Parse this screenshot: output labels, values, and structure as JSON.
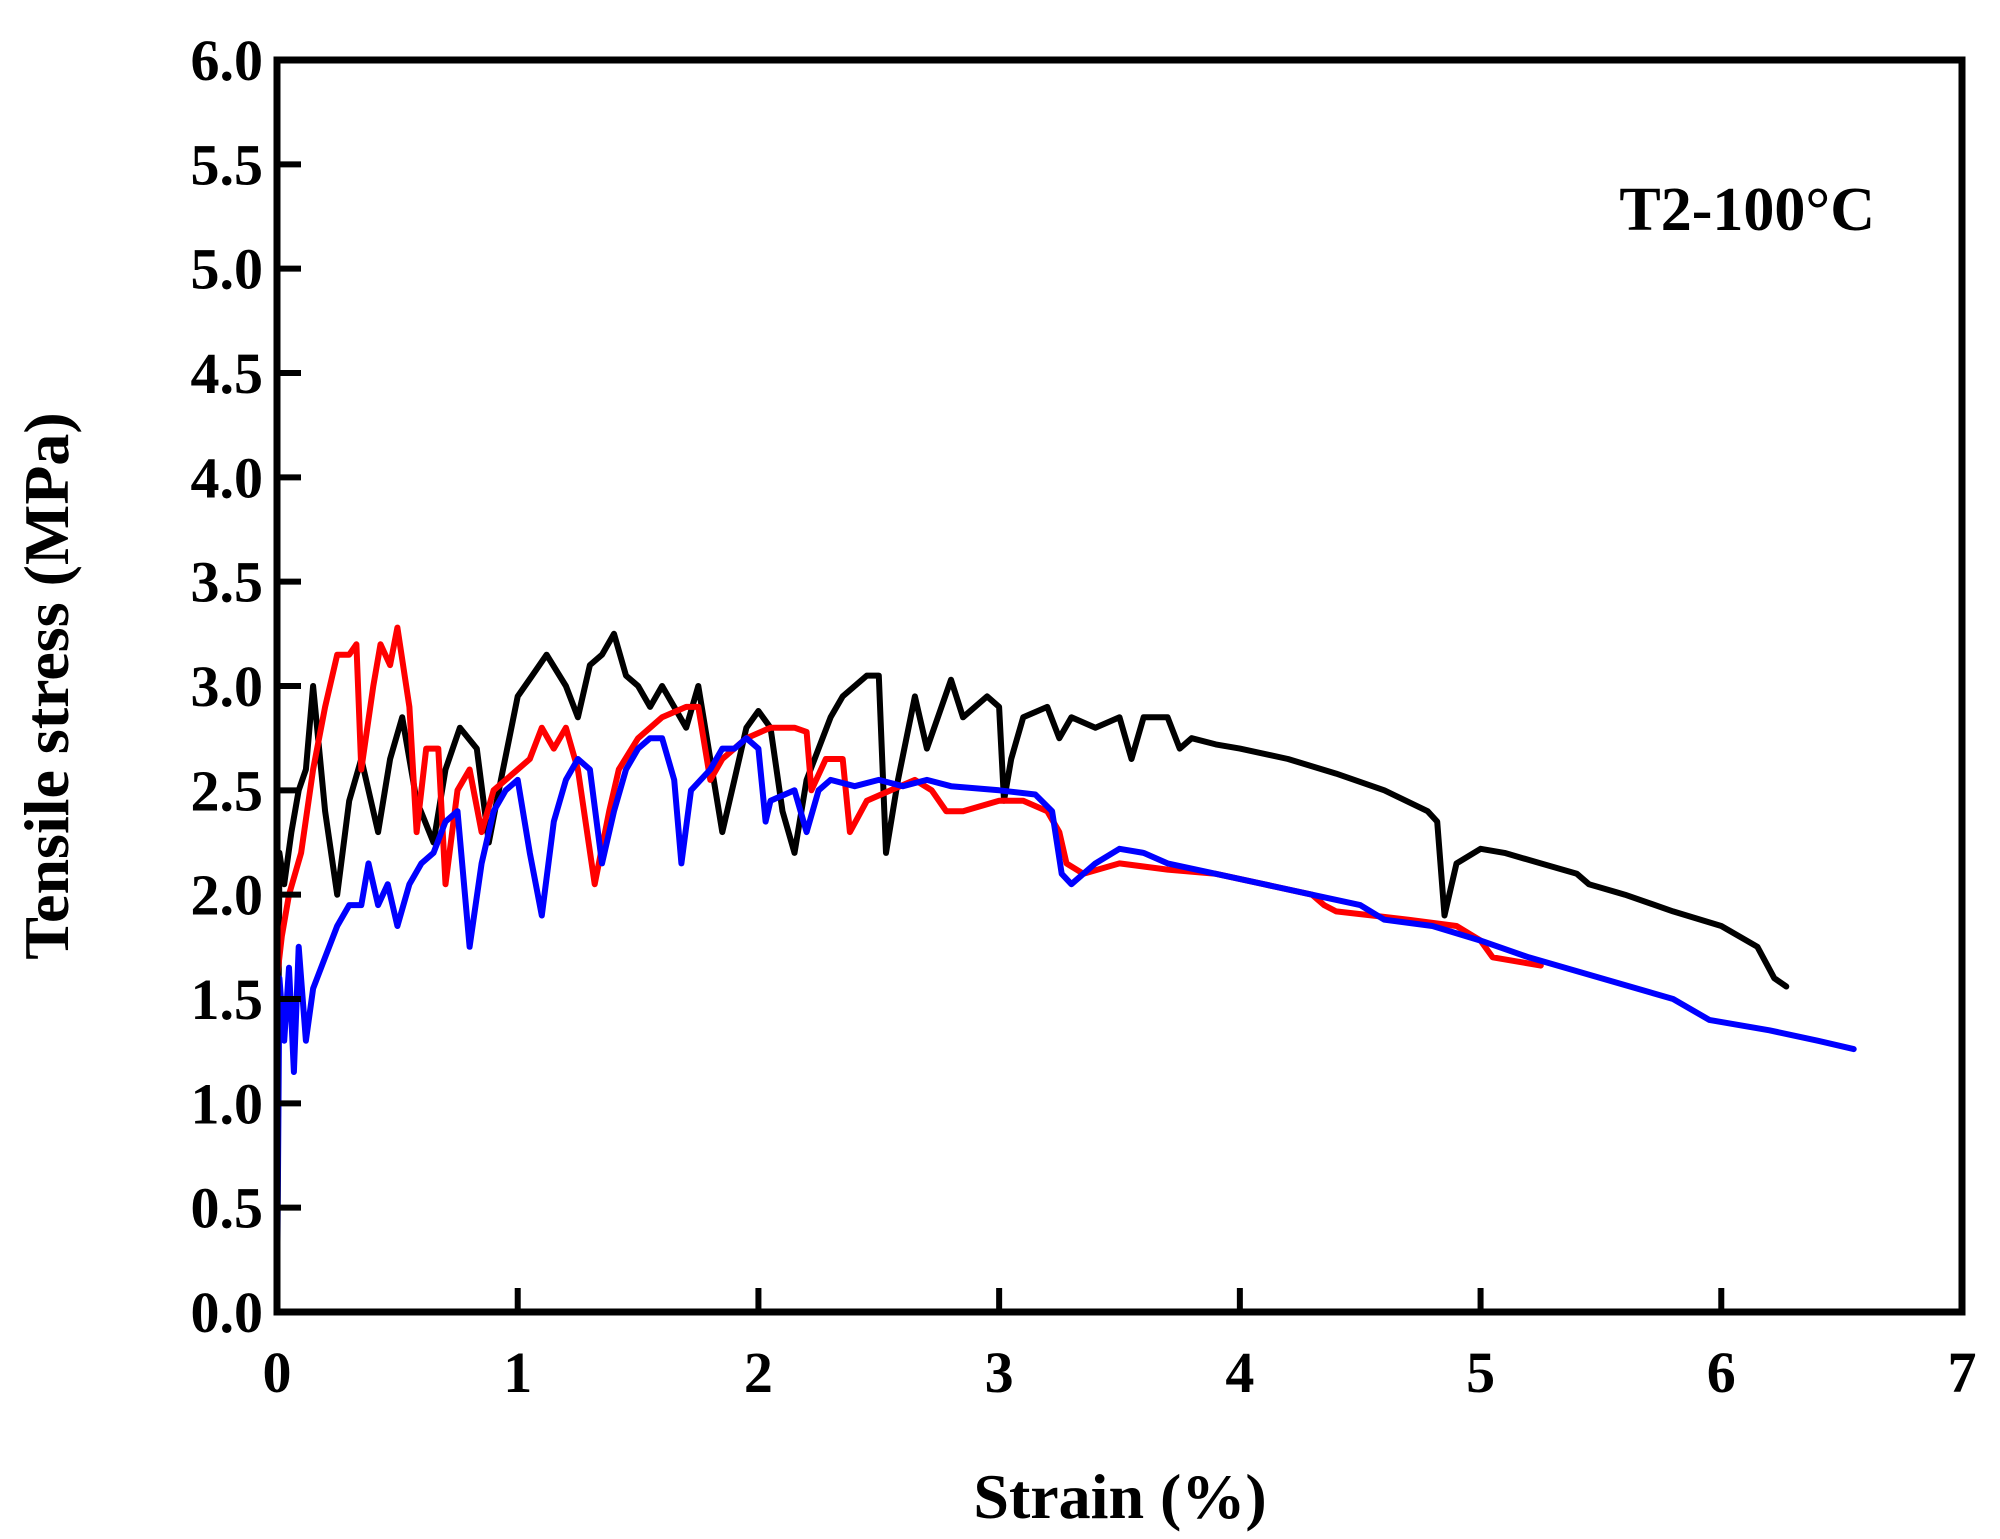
{
  "chart_data": {
    "type": "line",
    "title": "",
    "annotation": "T2-100°C",
    "xlabel": "Strain (%)",
    "ylabel": "Tensile stress (MPa)",
    "xlim": [
      0,
      7
    ],
    "ylim": [
      0,
      6
    ],
    "xticks": [
      "0",
      "1",
      "2",
      "3",
      "4",
      "5",
      "6",
      "7"
    ],
    "yticks": [
      "0.0",
      "0.5",
      "1.0",
      "1.5",
      "2.0",
      "2.5",
      "3.0",
      "3.5",
      "4.0",
      "4.5",
      "5.0",
      "5.5",
      "6.0"
    ],
    "grid": false,
    "legend": "none",
    "series": [
      {
        "color": "#000000",
        "points": [
          [
            0.0,
            0.0
          ],
          [
            0.01,
            2.2
          ],
          [
            0.03,
            2.05
          ],
          [
            0.06,
            2.3
          ],
          [
            0.09,
            2.5
          ],
          [
            0.12,
            2.6
          ],
          [
            0.15,
            3.0
          ],
          [
            0.2,
            2.4
          ],
          [
            0.25,
            2.0
          ],
          [
            0.3,
            2.45
          ],
          [
            0.35,
            2.65
          ],
          [
            0.42,
            2.3
          ],
          [
            0.47,
            2.65
          ],
          [
            0.52,
            2.85
          ],
          [
            0.58,
            2.45
          ],
          [
            0.65,
            2.25
          ],
          [
            0.7,
            2.6
          ],
          [
            0.76,
            2.8
          ],
          [
            0.83,
            2.7
          ],
          [
            0.88,
            2.25
          ],
          [
            0.93,
            2.55
          ],
          [
            1.0,
            2.95
          ],
          [
            1.06,
            3.05
          ],
          [
            1.12,
            3.15
          ],
          [
            1.2,
            3.0
          ],
          [
            1.25,
            2.85
          ],
          [
            1.3,
            3.1
          ],
          [
            1.35,
            3.15
          ],
          [
            1.4,
            3.25
          ],
          [
            1.45,
            3.05
          ],
          [
            1.5,
            3.0
          ],
          [
            1.55,
            2.9
          ],
          [
            1.6,
            3.0
          ],
          [
            1.65,
            2.9
          ],
          [
            1.7,
            2.8
          ],
          [
            1.75,
            3.0
          ],
          [
            1.8,
            2.65
          ],
          [
            1.85,
            2.3
          ],
          [
            1.9,
            2.55
          ],
          [
            1.95,
            2.8
          ],
          [
            2.0,
            2.88
          ],
          [
            2.05,
            2.8
          ],
          [
            2.1,
            2.4
          ],
          [
            2.15,
            2.2
          ],
          [
            2.2,
            2.55
          ],
          [
            2.25,
            2.7
          ],
          [
            2.3,
            2.85
          ],
          [
            2.35,
            2.95
          ],
          [
            2.45,
            3.05
          ],
          [
            2.5,
            3.05
          ],
          [
            2.53,
            2.2
          ],
          [
            2.58,
            2.55
          ],
          [
            2.65,
            2.95
          ],
          [
            2.7,
            2.7
          ],
          [
            2.8,
            3.03
          ],
          [
            2.85,
            2.85
          ],
          [
            2.95,
            2.95
          ],
          [
            3.0,
            2.9
          ],
          [
            3.02,
            2.45
          ],
          [
            3.05,
            2.65
          ],
          [
            3.1,
            2.85
          ],
          [
            3.2,
            2.9
          ],
          [
            3.25,
            2.75
          ],
          [
            3.3,
            2.85
          ],
          [
            3.4,
            2.8
          ],
          [
            3.5,
            2.85
          ],
          [
            3.55,
            2.65
          ],
          [
            3.6,
            2.85
          ],
          [
            3.7,
            2.85
          ],
          [
            3.75,
            2.7
          ],
          [
            3.8,
            2.75
          ],
          [
            3.9,
            2.72
          ],
          [
            4.0,
            2.7
          ],
          [
            4.2,
            2.65
          ],
          [
            4.4,
            2.58
          ],
          [
            4.6,
            2.5
          ],
          [
            4.78,
            2.4
          ],
          [
            4.82,
            2.35
          ],
          [
            4.85,
            1.9
          ],
          [
            4.9,
            2.15
          ],
          [
            5.0,
            2.22
          ],
          [
            5.1,
            2.2
          ],
          [
            5.25,
            2.15
          ],
          [
            5.4,
            2.1
          ],
          [
            5.45,
            2.05
          ],
          [
            5.6,
            2.0
          ],
          [
            5.8,
            1.92
          ],
          [
            6.0,
            1.85
          ],
          [
            6.15,
            1.75
          ],
          [
            6.22,
            1.6
          ],
          [
            6.27,
            1.56
          ]
        ]
      },
      {
        "color": "#ff0000",
        "points": [
          [
            0.0,
            1.6
          ],
          [
            0.02,
            1.8
          ],
          [
            0.05,
            2.0
          ],
          [
            0.1,
            2.2
          ],
          [
            0.15,
            2.6
          ],
          [
            0.2,
            2.9
          ],
          [
            0.25,
            3.15
          ],
          [
            0.3,
            3.15
          ],
          [
            0.33,
            3.2
          ],
          [
            0.35,
            2.6
          ],
          [
            0.4,
            3.0
          ],
          [
            0.43,
            3.2
          ],
          [
            0.47,
            3.1
          ],
          [
            0.5,
            3.28
          ],
          [
            0.55,
            2.9
          ],
          [
            0.58,
            2.3
          ],
          [
            0.62,
            2.7
          ],
          [
            0.67,
            2.7
          ],
          [
            0.7,
            2.05
          ],
          [
            0.75,
            2.5
          ],
          [
            0.8,
            2.6
          ],
          [
            0.85,
            2.3
          ],
          [
            0.9,
            2.5
          ],
          [
            0.95,
            2.55
          ],
          [
            1.05,
            2.65
          ],
          [
            1.1,
            2.8
          ],
          [
            1.15,
            2.7
          ],
          [
            1.2,
            2.8
          ],
          [
            1.25,
            2.6
          ],
          [
            1.32,
            2.05
          ],
          [
            1.38,
            2.4
          ],
          [
            1.42,
            2.6
          ],
          [
            1.5,
            2.75
          ],
          [
            1.6,
            2.85
          ],
          [
            1.7,
            2.9
          ],
          [
            1.75,
            2.9
          ],
          [
            1.8,
            2.55
          ],
          [
            1.85,
            2.65
          ],
          [
            1.95,
            2.75
          ],
          [
            2.05,
            2.8
          ],
          [
            2.15,
            2.8
          ],
          [
            2.2,
            2.78
          ],
          [
            2.22,
            2.5
          ],
          [
            2.28,
            2.65
          ],
          [
            2.35,
            2.65
          ],
          [
            2.38,
            2.3
          ],
          [
            2.45,
            2.45
          ],
          [
            2.55,
            2.5
          ],
          [
            2.65,
            2.55
          ],
          [
            2.72,
            2.5
          ],
          [
            2.78,
            2.4
          ],
          [
            2.85,
            2.4
          ],
          [
            3.0,
            2.45
          ],
          [
            3.1,
            2.45
          ],
          [
            3.2,
            2.4
          ],
          [
            3.25,
            2.3
          ],
          [
            3.28,
            2.15
          ],
          [
            3.35,
            2.1
          ],
          [
            3.5,
            2.15
          ],
          [
            3.7,
            2.12
          ],
          [
            3.9,
            2.1
          ],
          [
            4.1,
            2.05
          ],
          [
            4.3,
            2.0
          ],
          [
            4.35,
            1.95
          ],
          [
            4.4,
            1.92
          ],
          [
            4.55,
            1.9
          ],
          [
            4.7,
            1.88
          ],
          [
            4.9,
            1.85
          ],
          [
            5.0,
            1.78
          ],
          [
            5.05,
            1.7
          ],
          [
            5.15,
            1.68
          ],
          [
            5.25,
            1.66
          ]
        ]
      },
      {
        "color": "#0000ff",
        "points": [
          [
            0.0,
            0.0
          ],
          [
            0.01,
            1.6
          ],
          [
            0.03,
            1.3
          ],
          [
            0.05,
            1.65
          ],
          [
            0.07,
            1.15
          ],
          [
            0.09,
            1.75
          ],
          [
            0.12,
            1.3
          ],
          [
            0.15,
            1.55
          ],
          [
            0.2,
            1.7
          ],
          [
            0.25,
            1.85
          ],
          [
            0.3,
            1.95
          ],
          [
            0.35,
            1.95
          ],
          [
            0.38,
            2.15
          ],
          [
            0.42,
            1.95
          ],
          [
            0.46,
            2.05
          ],
          [
            0.5,
            1.85
          ],
          [
            0.55,
            2.05
          ],
          [
            0.6,
            2.15
          ],
          [
            0.65,
            2.2
          ],
          [
            0.7,
            2.35
          ],
          [
            0.75,
            2.4
          ],
          [
            0.8,
            1.75
          ],
          [
            0.85,
            2.15
          ],
          [
            0.9,
            2.4
          ],
          [
            0.95,
            2.5
          ],
          [
            1.0,
            2.55
          ],
          [
            1.05,
            2.2
          ],
          [
            1.1,
            1.9
          ],
          [
            1.15,
            2.35
          ],
          [
            1.2,
            2.55
          ],
          [
            1.25,
            2.65
          ],
          [
            1.3,
            2.6
          ],
          [
            1.35,
            2.15
          ],
          [
            1.4,
            2.4
          ],
          [
            1.45,
            2.6
          ],
          [
            1.5,
            2.7
          ],
          [
            1.55,
            2.75
          ],
          [
            1.6,
            2.75
          ],
          [
            1.65,
            2.55
          ],
          [
            1.68,
            2.15
          ],
          [
            1.72,
            2.5
          ],
          [
            1.8,
            2.6
          ],
          [
            1.85,
            2.7
          ],
          [
            1.9,
            2.7
          ],
          [
            1.95,
            2.75
          ],
          [
            2.0,
            2.7
          ],
          [
            2.03,
            2.35
          ],
          [
            2.05,
            2.45
          ],
          [
            2.15,
            2.5
          ],
          [
            2.2,
            2.3
          ],
          [
            2.25,
            2.5
          ],
          [
            2.3,
            2.55
          ],
          [
            2.4,
            2.52
          ],
          [
            2.5,
            2.55
          ],
          [
            2.6,
            2.52
          ],
          [
            2.7,
            2.55
          ],
          [
            2.8,
            2.52
          ],
          [
            3.0,
            2.5
          ],
          [
            3.15,
            2.48
          ],
          [
            3.22,
            2.4
          ],
          [
            3.26,
            2.1
          ],
          [
            3.3,
            2.05
          ],
          [
            3.4,
            2.15
          ],
          [
            3.5,
            2.22
          ],
          [
            3.6,
            2.2
          ],
          [
            3.7,
            2.15
          ],
          [
            3.9,
            2.1
          ],
          [
            4.1,
            2.05
          ],
          [
            4.3,
            2.0
          ],
          [
            4.5,
            1.95
          ],
          [
            4.6,
            1.88
          ],
          [
            4.8,
            1.85
          ],
          [
            5.0,
            1.78
          ],
          [
            5.2,
            1.7
          ],
          [
            5.5,
            1.6
          ],
          [
            5.8,
            1.5
          ],
          [
            5.95,
            1.4
          ],
          [
            6.2,
            1.35
          ],
          [
            6.4,
            1.3
          ],
          [
            6.55,
            1.26
          ]
        ]
      }
    ]
  }
}
